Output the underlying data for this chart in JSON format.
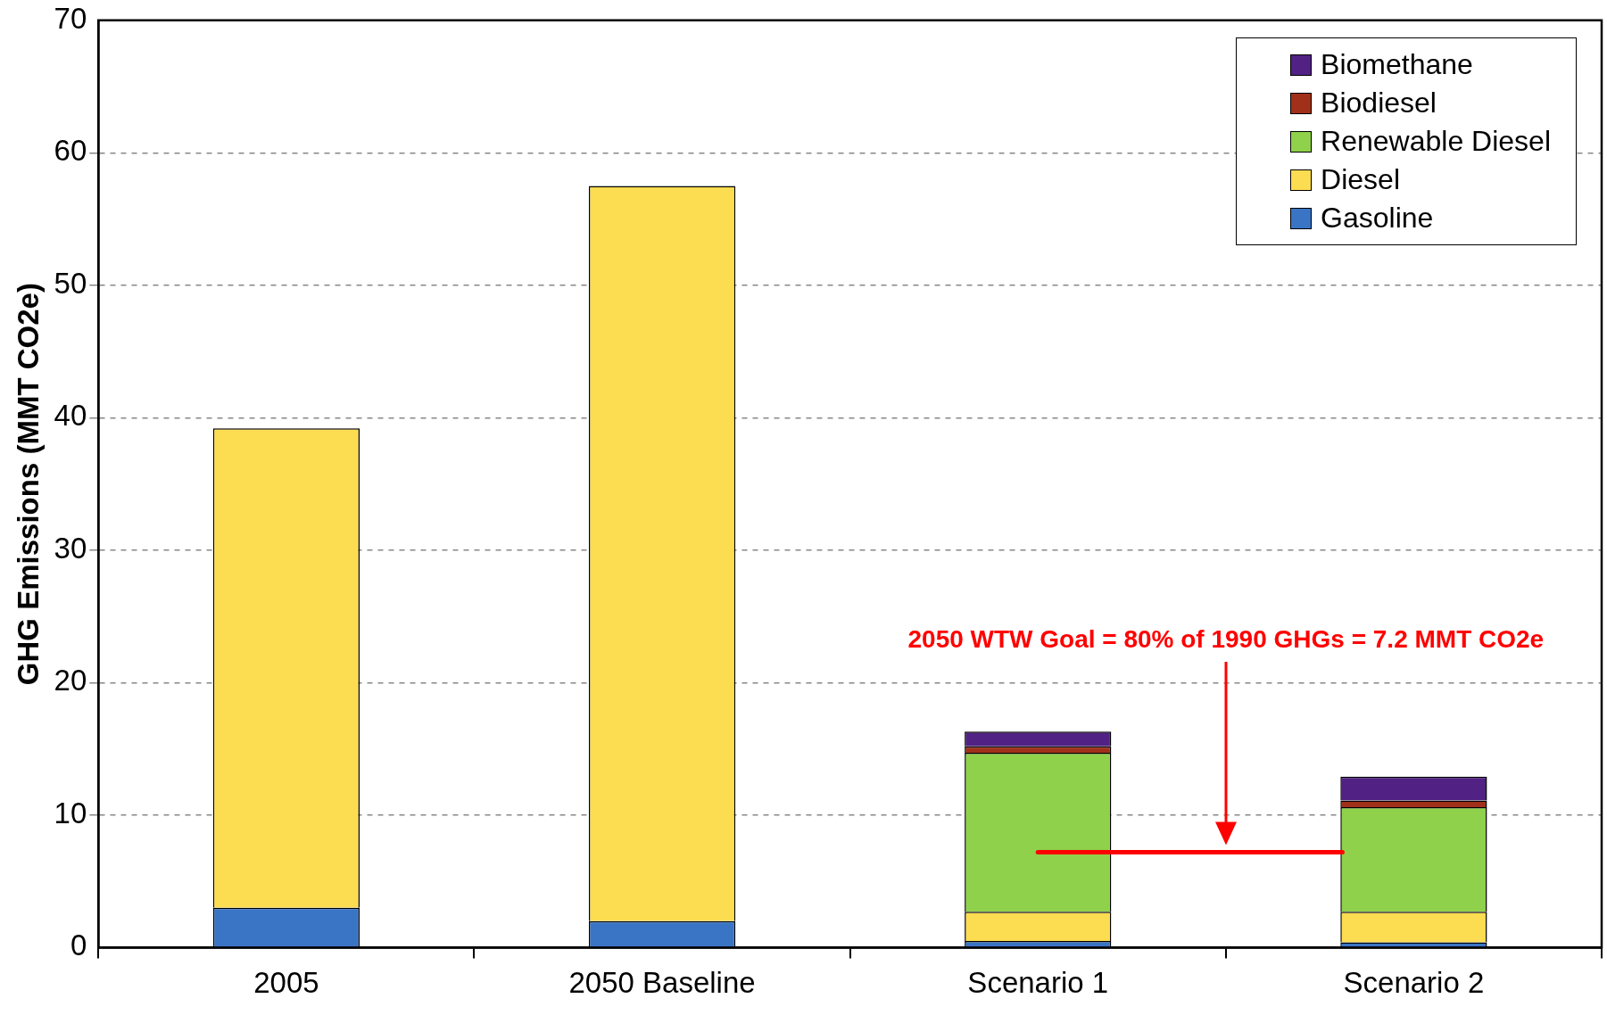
{
  "chart_data": {
    "type": "bar",
    "stacked": true,
    "ylabel": "GHG Emissions (MMT CO2e)",
    "categories": [
      "2005",
      "2050 Baseline",
      "Scenario 1",
      "Scenario 2"
    ],
    "series": [
      {
        "name": "Gasoline",
        "color": "#3a74c4",
        "values": [
          3.0,
          2.0,
          0.5,
          0.4
        ]
      },
      {
        "name": "Diesel",
        "color": "#fcdc50",
        "values": [
          36.2,
          55.5,
          2.2,
          2.3
        ]
      },
      {
        "name": "Renewable Diesel",
        "color": "#8fd14b",
        "values": [
          null,
          null,
          12.0,
          7.9
        ]
      },
      {
        "name": "Biodiesel",
        "color": "#a0301a",
        "values": [
          null,
          null,
          0.5,
          0.5
        ]
      },
      {
        "name": "Biomethane",
        "color": "#512184",
        "values": [
          null,
          null,
          1.1,
          1.8
        ]
      }
    ],
    "ylim": [
      0,
      70
    ],
    "yticks": [
      0,
      10,
      20,
      30,
      40,
      50,
      60,
      70
    ],
    "grid": "y",
    "legend": "top right",
    "ref_lines": [
      {
        "axis": "y",
        "value": 7.2,
        "label": "2050 WTW Goal = 80% of 1990 GHGs = 7.2 MMT CO2e",
        "color": "#ff0000"
      }
    ]
  }
}
